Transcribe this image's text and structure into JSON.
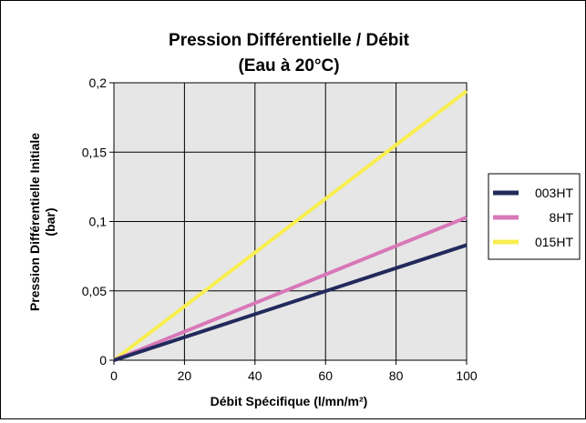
{
  "chart_data": {
    "type": "line",
    "title": "Pression Différentielle / Débit",
    "subtitle": "(Eau à 20°C)",
    "xlabel": "Débit Spécifique (l/mn/m²)",
    "ylabel_line1": "Pression Différentielle Initiale",
    "ylabel_line2": "(bar)",
    "xlim": [
      0,
      100
    ],
    "ylim": [
      0,
      0.2
    ],
    "x_ticks": [
      0,
      20,
      40,
      60,
      80,
      100
    ],
    "x_tick_labels": [
      "0",
      "20",
      "40",
      "60",
      "80",
      "100"
    ],
    "y_ticks": [
      0,
      0.05,
      0.1,
      0.15,
      0.2
    ],
    "y_tick_labels": [
      "0",
      "0,05",
      "0,1",
      "0,15",
      "0,2"
    ],
    "grid": true,
    "plot_background": "#e6e6e6",
    "legend_position": "right",
    "series": [
      {
        "name": "003HT",
        "color": "#222a5c",
        "x": [
          0,
          100
        ],
        "y": [
          0,
          0.083
        ]
      },
      {
        "name": "8HT",
        "color": "#d878b8",
        "x": [
          0,
          100
        ],
        "y": [
          0,
          0.103
        ]
      },
      {
        "name": "015HT",
        "color": "#f8ee50",
        "x": [
          0,
          100
        ],
        "y": [
          0,
          0.194
        ]
      }
    ]
  }
}
